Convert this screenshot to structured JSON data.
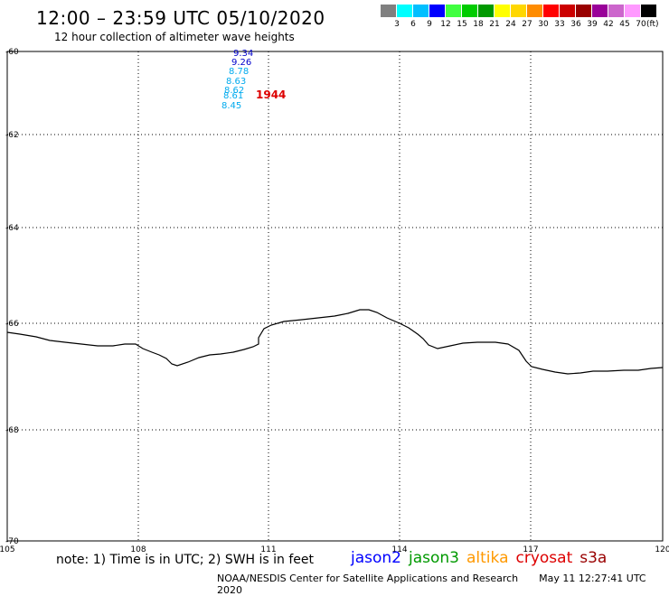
{
  "header": {
    "title": "12:00 – 23:59 UTC 05/10/2020",
    "subtitle": "12 hour collection of altimeter wave heights"
  },
  "color_scale": {
    "unit": "(ft)",
    "colors": [
      "#808080",
      "#00ffff",
      "#00bfff",
      "#0000ff",
      "#40ff40",
      "#00cc00",
      "#009900",
      "#ffff00",
      "#ffd700",
      "#ff8c00",
      "#ff0000",
      "#cc0000",
      "#990000",
      "#990099",
      "#cc66cc",
      "#ff99ff",
      "#000000"
    ],
    "labels": [
      "3",
      "6",
      "9",
      "12",
      "15",
      "18",
      "21",
      "24",
      "27",
      "30",
      "33",
      "36",
      "39",
      "42",
      "45",
      "70"
    ]
  },
  "axes": {
    "lat_labels": [
      "-60",
      "-62",
      "-64",
      "-66",
      "-68",
      "-70"
    ],
    "lon_labels": [
      "105",
      "108",
      "111",
      "114",
      "117",
      "120"
    ]
  },
  "observations": [
    {
      "value": "9.34",
      "color": "#0000cc"
    },
    {
      "value": "9.26",
      "color": "#0000cc"
    },
    {
      "value": "8.78",
      "color": "#00aaee"
    },
    {
      "value": "8.63",
      "color": "#00aaee"
    },
    {
      "value": "8.62",
      "color": "#00aaee"
    },
    {
      "value": "8.61",
      "color": "#00aaee"
    },
    {
      "value": "8.45",
      "color": "#00aaee"
    }
  ],
  "time_label": {
    "value": "1944",
    "color": "#dd0000"
  },
  "notes": {
    "text": "note:  1) Time is in UTC;  2) SWH is in feet"
  },
  "satellites": [
    {
      "name": "jason2",
      "color": "#0000ff"
    },
    {
      "name": "jason3",
      "color": "#009900"
    },
    {
      "name": "altika",
      "color": "#ff9900"
    },
    {
      "name": "cryosat",
      "color": "#dd0000"
    },
    {
      "name": "s3a",
      "color": "#990000"
    }
  ],
  "footer": {
    "credit": "NOAA/NESDIS Center for Satellite Applications and Research",
    "timestamp": "May 11 12:27:41 UTC 2020"
  }
}
